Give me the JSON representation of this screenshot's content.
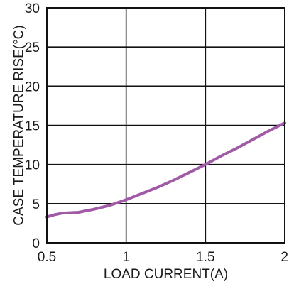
{
  "chart_data": {
    "type": "line",
    "xlabel": "LOAD CURRENT(A)",
    "ylabel": "CASE TEMPERATURE RISE(°C)",
    "xlim": [
      0.5,
      2
    ],
    "ylim": [
      0,
      30
    ],
    "x_ticks": [
      "0.5",
      "1",
      "1.5",
      "2"
    ],
    "y_ticks": [
      "0",
      "5",
      "10",
      "15",
      "20",
      "25",
      "30"
    ],
    "grid": true,
    "series": [
      {
        "color": "#a05aa6",
        "x": [
          0.5,
          0.55,
          0.6,
          0.7,
          0.8,
          0.9,
          1.0,
          1.1,
          1.2,
          1.3,
          1.4,
          1.5,
          1.6,
          1.7,
          1.8,
          1.9,
          2.0
        ],
        "y": [
          3.3,
          3.6,
          3.8,
          3.9,
          4.3,
          4.8,
          5.5,
          6.3,
          7.1,
          8.0,
          9.0,
          10.0,
          11.1,
          12.1,
          13.2,
          14.3,
          15.3
        ]
      }
    ]
  }
}
